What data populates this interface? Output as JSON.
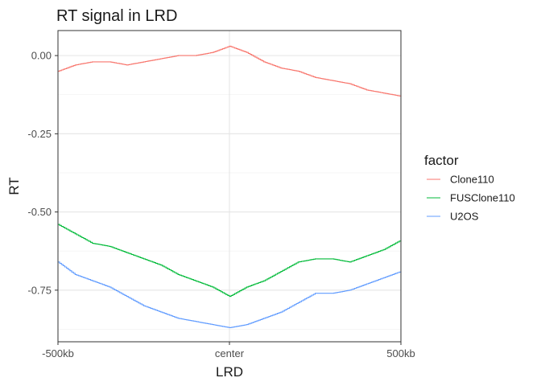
{
  "chart_data": {
    "type": "line",
    "title": "RT signal in LRD",
    "xlabel": "LRD",
    "ylabel": "RT",
    "x_tick_labels": [
      "-500kb",
      "center",
      "500kb"
    ],
    "x_tick_values": [
      -500,
      0,
      500
    ],
    "y_tick_labels": [
      "0.00",
      "-0.25",
      "-0.50",
      "-0.75"
    ],
    "y_tick_values": [
      0.0,
      -0.25,
      -0.5,
      -0.75
    ],
    "xlim": [
      -500,
      500
    ],
    "ylim": [
      -0.915,
      0.08
    ],
    "grid": true,
    "legend": {
      "title": "factor",
      "position": "right"
    },
    "x": [
      -500,
      -450,
      -400,
      -350,
      -300,
      -250,
      -200,
      -150,
      -100,
      -50,
      0,
      50,
      100,
      150,
      200,
      250,
      300,
      350,
      400,
      450,
      500
    ],
    "series": [
      {
        "name": "Clone110",
        "color": "#F8766D",
        "values": [
          -0.05,
          -0.03,
          -0.02,
          -0.02,
          -0.03,
          -0.02,
          -0.01,
          0.0,
          0.0,
          0.01,
          0.03,
          0.01,
          -0.02,
          -0.04,
          -0.05,
          -0.07,
          -0.08,
          -0.09,
          -0.11,
          -0.12,
          -0.13
        ]
      },
      {
        "name": "FUSClone110",
        "color": "#00BA38",
        "values": [
          -0.54,
          -0.57,
          -0.6,
          -0.61,
          -0.63,
          -0.65,
          -0.67,
          -0.7,
          -0.72,
          -0.74,
          -0.77,
          -0.74,
          -0.72,
          -0.69,
          -0.66,
          -0.65,
          -0.65,
          -0.66,
          -0.64,
          -0.62,
          -0.59
        ]
      },
      {
        "name": "U2OS",
        "color": "#619CFF",
        "values": [
          -0.66,
          -0.7,
          -0.72,
          -0.74,
          -0.77,
          -0.8,
          -0.82,
          -0.84,
          -0.85,
          -0.86,
          -0.87,
          -0.86,
          -0.84,
          -0.82,
          -0.79,
          -0.76,
          -0.76,
          -0.75,
          -0.73,
          -0.71,
          -0.69
        ]
      }
    ]
  }
}
